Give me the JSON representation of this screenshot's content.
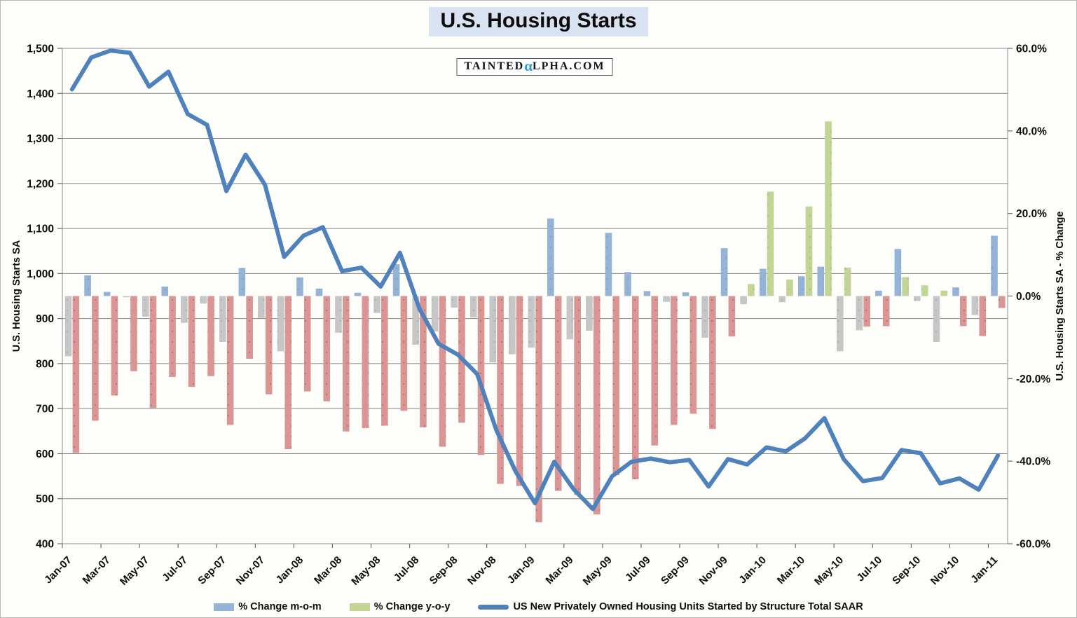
{
  "title": "U.S. Housing Starts",
  "logo": {
    "prefix": "TAINTED",
    "alpha": "α",
    "suffix": "LPHA.COM",
    "alpha_color": "#2e9cd6"
  },
  "legend": [
    {
      "label": "% Change m-o-m",
      "swatch": "mom"
    },
    {
      "label": "% Change y-o-y",
      "swatch": "yoy"
    },
    {
      "label": "US New Privately Owned Housing Units Started by Structure Total SAAR",
      "swatch": "line"
    }
  ],
  "colors": {
    "line": "#4f81bd",
    "mom_positive": "#95b3d7",
    "mom_positive_dot": "#7b9dc7",
    "mom_negative": "#c6c6c6",
    "mom_negative_dot": "#aaaaaa",
    "yoy_positive": "#c2d596",
    "yoy_positive_dot": "#a9c073",
    "yoy_negative": "#d99694",
    "yoy_negative_dot": "#b16a68",
    "grid": "#828282",
    "plot_border": "#98a2ad",
    "tick": "#6f6f6f",
    "text": "#0d0d0d",
    "title_bg": "#d9e2f0"
  },
  "chart_data": {
    "type": "combo-bar-line",
    "grid": true,
    "legend_position": "bottom",
    "months": [
      "Jan-07",
      "Feb-07",
      "Mar-07",
      "Apr-07",
      "May-07",
      "Jun-07",
      "Jul-07",
      "Aug-07",
      "Sep-07",
      "Oct-07",
      "Nov-07",
      "Dec-07",
      "Jan-08",
      "Feb-08",
      "Mar-08",
      "Apr-08",
      "May-08",
      "Jun-08",
      "Jul-08",
      "Aug-08",
      "Sep-08",
      "Oct-08",
      "Nov-08",
      "Dec-08",
      "Jan-09",
      "Feb-09",
      "Mar-09",
      "Apr-09",
      "May-09",
      "Jun-09",
      "Jul-09",
      "Aug-09",
      "Sep-09",
      "Oct-09",
      "Nov-09",
      "Dec-09",
      "Jan-10",
      "Feb-10",
      "Mar-10",
      "Apr-10",
      "May-10",
      "Jun-10",
      "Jul-10",
      "Aug-10",
      "Sep-10",
      "Oct-10",
      "Nov-10",
      "Dec-10",
      "Jan-11"
    ],
    "series": [
      {
        "name": "% Change m-o-m",
        "type": "bar",
        "axis": "right",
        "unit": "%",
        "values": [
          -14.6,
          5.0,
          1.0,
          -0.3,
          -5.0,
          2.3,
          -6.5,
          -1.8,
          -11.1,
          6.8,
          -5.3,
          -13.4,
          4.5,
          1.8,
          -8.9,
          0.8,
          -4.1,
          7.7,
          -11.8,
          -8.6,
          -2.8,
          -5.2,
          -16.1,
          -14.1,
          -12.5,
          18.8,
          -10.5,
          -8.4,
          15.3,
          5.8,
          1.2,
          -1.4,
          0.9,
          -10.1,
          11.6,
          -2.0,
          6.6,
          -1.5,
          4.8,
          7.1,
          -13.4,
          -8.3,
          1.3,
          11.4,
          -1.2,
          -11.1,
          2.1,
          -4.6,
          14.6
        ]
      },
      {
        "name": "% Change y-o-y",
        "type": "bar",
        "axis": "right",
        "unit": "%",
        "values": [
          -38.0,
          -30.2,
          -24.1,
          -18.2,
          -27.1,
          -19.6,
          -22.0,
          -19.4,
          -31.2,
          -15.2,
          -23.8,
          -37.1,
          -23.1,
          -25.5,
          -32.8,
          -32.0,
          -31.4,
          -27.8,
          -31.8,
          -36.5,
          -30.7,
          -38.5,
          -45.5,
          -46.0,
          -54.8,
          -47.2,
          -48.2,
          -52.9,
          -43.4,
          -44.4,
          -36.2,
          -31.2,
          -28.5,
          -32.2,
          -9.8,
          2.9,
          25.3,
          4.0,
          21.7,
          42.3,
          6.9,
          -7.4,
          -7.3,
          4.6,
          2.6,
          1.3,
          -7.3,
          -9.7,
          -2.9
        ]
      },
      {
        "name": "US New Privately Owned Housing Units Started by Structure Total SAAR",
        "type": "line",
        "axis": "left",
        "unit": "thousands of units SAAR",
        "values": [
          1409,
          1480,
          1495,
          1490,
          1415,
          1448,
          1354,
          1330,
          1183,
          1264,
          1197,
          1037,
          1084,
          1103,
          1005,
          1013,
          971,
          1046,
          923,
          844,
          820,
          777,
          652,
          560,
          490,
          582,
          521,
          477,
          550,
          582,
          589,
          581,
          586,
          527,
          588,
          576,
          614,
          605,
          634,
          679,
          588,
          539,
          546,
          608,
          601,
          534,
          545,
          520,
          596
        ]
      }
    ],
    "y_left": {
      "title": "U.S. Housing Starts SA",
      "min": 400,
      "max": 1500,
      "step": 100,
      "tick_values": [
        1500,
        1400,
        1300,
        1200,
        1100,
        1000,
        900,
        800,
        700,
        600,
        500,
        400
      ],
      "tick_labels": [
        "1,500",
        "1,400",
        "1,300",
        "1,200",
        "1,100",
        "1,000",
        "900",
        "800",
        "700",
        "600",
        "500",
        "400"
      ]
    },
    "y_right": {
      "title": "U.S. Housing Starts SA - % Change",
      "min": -60,
      "max": 60,
      "step": 20,
      "tick_values": [
        60,
        40,
        20,
        0,
        -20,
        -40,
        -60
      ],
      "tick_labels": [
        "60.0%",
        "40.0%",
        "20.0%",
        "0.0%",
        "-20.0%",
        "-40.0%",
        "-60.0%"
      ]
    },
    "x_axis": {
      "tick_labels": [
        "Jan-07",
        "Mar-07",
        "May-07",
        "Jul-07",
        "Sep-07",
        "Nov-07",
        "Jan-08",
        "Mar-08",
        "May-08",
        "Jul-08",
        "Sep-08",
        "Nov-08",
        "Jan-09",
        "Mar-09",
        "May-09",
        "Jul-09",
        "Sep-09",
        "Nov-09",
        "Jan-10",
        "Mar-10",
        "May-10",
        "Jul-10",
        "Sep-10",
        "Nov-10",
        "Jan-11"
      ]
    }
  }
}
